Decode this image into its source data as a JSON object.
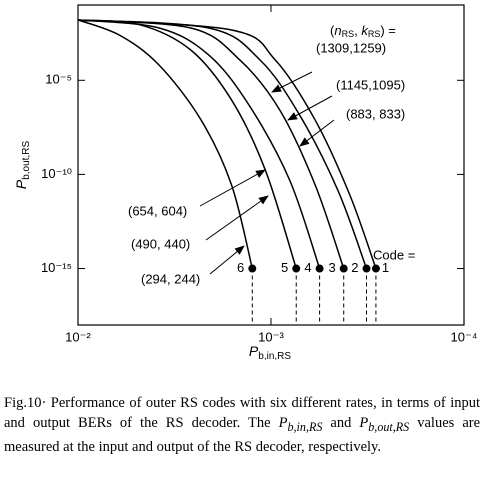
{
  "chart_data": {
    "type": "line",
    "x_label": {
      "base": "P",
      "sub": "b,in,RS"
    },
    "y_label": {
      "base": "P",
      "sub": "b,out,RS"
    },
    "xscale": "log",
    "yscale": "log",
    "xlim": [
      0.01,
      0.0001
    ],
    "ylim": [
      1e-18,
      0.1
    ],
    "xticks": [
      {
        "value": 0.01,
        "label": "10⁻²"
      },
      {
        "value": 0.001,
        "label": "10⁻³"
      },
      {
        "value": 0.0001,
        "label": "10⁻⁴"
      }
    ],
    "yticks": [
      {
        "value": 1e-05,
        "label": "10⁻⁵"
      },
      {
        "value": 1e-10,
        "label": "10⁻¹⁰"
      },
      {
        "value": 1e-15,
        "label": "10⁻¹⁵"
      }
    ],
    "legend_title": [
      "(",
      "n",
      "RS",
      ", ",
      "k",
      "RS",
      ") ="
    ],
    "code_label": "Code =",
    "series": [
      {
        "name": "(1309,1259)",
        "code": "1",
        "color": "#000000",
        "x": [
          0.01,
          0.0016,
          0.00095,
          0.00059,
          0.00039,
          0.000286
        ],
        "values": [
          0.016,
          0.0047,
          0.00012,
          7.6e-08,
          7.8e-12,
          1e-15
        ]
      },
      {
        "name": "(1145,1095)",
        "code": "2",
        "color": "#000000",
        "x": [
          0.01,
          0.0021,
          0.00114,
          0.00071,
          0.00045,
          0.00032
        ],
        "values": [
          0.016,
          0.006,
          0.00012,
          1.4e-07,
          1.4e-11,
          1e-15
        ]
      },
      {
        "name": "(883, 833)",
        "code": "3",
        "color": "#000000",
        "x": [
          0.01,
          0.0026,
          0.00145,
          0.0009,
          0.00059,
          0.00042
        ],
        "values": [
          0.016,
          0.006,
          0.00012,
          2.6e-07,
          2.7e-11,
          1e-15
        ]
      },
      {
        "name": "(654, 604)",
        "code": "4",
        "color": "#000000",
        "x": [
          0.01,
          0.0038,
          0.0021,
          0.0013,
          0.0008,
          0.00056
        ],
        "values": [
          0.016,
          0.006,
          0.00022,
          4.8e-07,
          4.9e-11,
          1e-15
        ]
      },
      {
        "name": "(490, 440)",
        "code": "5",
        "color": "#000000",
        "x": [
          0.01,
          0.0048,
          0.0026,
          0.0016,
          0.00107,
          0.00074
        ],
        "values": [
          0.016,
          0.009,
          0.0004,
          8.9e-07,
          1.7e-10,
          1e-15
        ]
      },
      {
        "name": "(294, 244)",
        "code": "6",
        "color": "#000000",
        "x": [
          0.01,
          0.0061,
          0.0038,
          0.0023,
          0.0016,
          0.00125
        ],
        "values": [
          0.016,
          0.0025,
          6.4e-05,
          7.6e-08,
          2.7e-11,
          1e-15
        ]
      }
    ]
  },
  "caption": {
    "fig": "Fig.10",
    "dot": "·",
    "text1": " Performance of outer RS codes with six different rates, in terms of input and output BERs of the RS decoder. The ",
    "p1": "P",
    "s1": "b,in,RS",
    "text2": " and ",
    "p2": "P",
    "s2": "b,out,RS",
    "text3": " values are measured at the input and output of the RS decoder, respectively."
  }
}
